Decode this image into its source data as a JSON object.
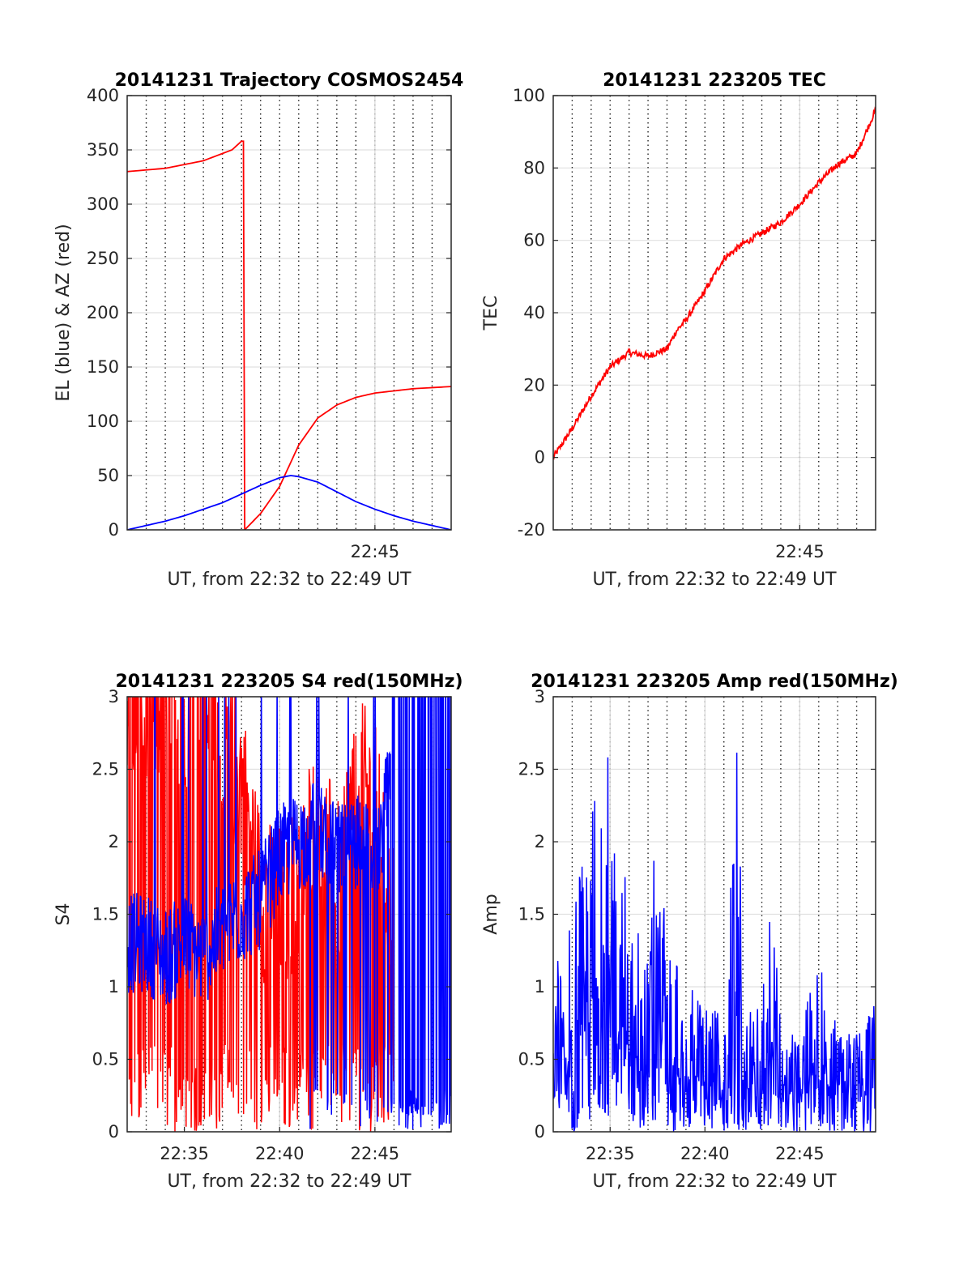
{
  "chart_data": [
    {
      "type": "line",
      "title": "20141231 Trajectory COSMOS2454",
      "xlabel": "UT, from 22:32 to 22:49 UT",
      "ylabel": "EL (blue) & AZ (red)",
      "xlim": [
        "22:32",
        "22:49"
      ],
      "ylim": [
        0,
        400
      ],
      "yticks": [
        0,
        50,
        100,
        150,
        200,
        250,
        300,
        350,
        400
      ],
      "xtick_labels": [
        {
          "x": "22:45",
          "label": "22:45"
        }
      ],
      "grid": true,
      "series": [
        {
          "color": "#ff0000",
          "x": [
            "22:32:00",
            "22:34:00",
            "22:36:00",
            "22:37:30",
            "22:38:00",
            "22:38:06",
            "22:38:10",
            "22:39:00",
            "22:40:00",
            "22:41:00",
            "22:42:00",
            "22:43:00",
            "22:44:00",
            "22:45:00",
            "22:46:00",
            "22:47:00",
            "22:48:00",
            "22:49:00"
          ],
          "y": [
            330,
            333,
            340,
            350,
            358,
            358,
            0,
            15,
            40,
            78,
            103,
            115,
            122,
            126,
            128,
            130,
            131,
            132
          ]
        },
        {
          "color": "#0000ff",
          "x": [
            "22:32:00",
            "22:33:00",
            "22:34:00",
            "22:35:00",
            "22:36:00",
            "22:37:00",
            "22:38:00",
            "22:39:00",
            "22:40:00",
            "22:40:35",
            "22:41:00",
            "22:42:00",
            "22:43:00",
            "22:44:00",
            "22:45:00",
            "22:46:00",
            "22:47:00",
            "22:48:00",
            "22:49:00"
          ],
          "y": [
            0,
            4,
            8,
            13,
            19,
            25,
            33,
            41,
            48,
            50,
            49,
            44,
            35,
            26,
            19,
            13,
            8,
            4,
            0
          ]
        }
      ]
    },
    {
      "type": "line",
      "title": "20141231 223205 TEC",
      "xlabel": "UT, from 22:32 to 22:49 UT",
      "ylabel": "TEC",
      "xlim": [
        "22:32",
        "22:49"
      ],
      "ylim": [
        -20,
        100
      ],
      "yticks": [
        -20,
        0,
        20,
        40,
        60,
        80,
        100
      ],
      "xtick_labels": [
        {
          "x": "22:45",
          "label": "22:45"
        }
      ],
      "grid": true,
      "series": [
        {
          "color": "#ff0000",
          "x": [
            "22:32:00",
            "22:33:00",
            "22:34:00",
            "22:35:00",
            "22:36:00",
            "22:37:00",
            "22:38:00",
            "22:38:30",
            "22:39:00",
            "22:40:00",
            "22:41:00",
            "22:42:00",
            "22:43:00",
            "22:44:00",
            "22:45:00",
            "22:46:00",
            "22:47:00",
            "22:48:00",
            "22:49:00"
          ],
          "y": [
            0,
            8,
            17,
            25,
            29,
            28,
            30,
            35,
            38,
            46,
            55,
            59,
            62,
            65,
            70,
            76,
            81,
            84,
            96
          ]
        }
      ]
    },
    {
      "type": "line",
      "title": "20141231 223205 S4 red(150MHz)",
      "xlabel": "UT, from 22:32 to 22:49 UT",
      "ylabel": "S4",
      "xlim": [
        "22:32",
        "22:49"
      ],
      "ylim": [
        0,
        3
      ],
      "yticks": [
        0,
        0.5,
        1,
        1.5,
        2,
        2.5,
        3
      ],
      "xtick_labels": [
        {
          "x": "22:35",
          "label": "22:35"
        },
        {
          "x": "22:40",
          "label": "22:40"
        },
        {
          "x": "22:45",
          "label": "22:45"
        }
      ],
      "grid": true,
      "series": [
        {
          "color": "#ff0000",
          "x": [
            "22:32:00",
            "22:33:00",
            "22:34:00",
            "22:35:00",
            "22:36:00",
            "22:37:00",
            "22:38:00",
            "22:39:00",
            "22:40:00",
            "22:41:00",
            "22:42:00",
            "22:43:00",
            "22:44:00",
            "22:45:00",
            "22:46:00"
          ],
          "y": [
            2.8,
            2.6,
            2.8,
            2.7,
            2.9,
            2.4,
            2.2,
            1.4,
            1.3,
            1.5,
            2.0,
            1.4,
            2.2,
            2.0,
            1.2
          ]
        },
        {
          "color": "#0000ff",
          "x": [
            "22:32:00",
            "22:33:00",
            "22:34:00",
            "22:35:00",
            "22:36:00",
            "22:37:00",
            "22:38:00",
            "22:39:00",
            "22:40:00",
            "22:41:00",
            "22:42:00",
            "22:43:00",
            "22:44:00",
            "22:45:00",
            "22:46:00",
            "22:47:00",
            "22:48:00",
            "22:49:00"
          ],
          "y": [
            1.3,
            1.3,
            1.2,
            1.3,
            1.2,
            1.4,
            1.5,
            1.6,
            1.9,
            2.0,
            2.1,
            1.9,
            2.0,
            1.9,
            2.5,
            2.8,
            2.9,
            2.8
          ]
        }
      ]
    },
    {
      "type": "line",
      "title": "20141231 223205 Amp red(150MHz)",
      "xlabel": "UT, from 22:32 to 22:49 UT",
      "ylabel": "Amp",
      "xlim": [
        "22:32",
        "22:49"
      ],
      "ylim": [
        0,
        3
      ],
      "yticks": [
        0,
        0.5,
        1,
        1.5,
        2,
        2.5,
        3
      ],
      "xtick_labels": [
        {
          "x": "22:35",
          "label": "22:35"
        },
        {
          "x": "22:40",
          "label": "22:40"
        },
        {
          "x": "22:45",
          "label": "22:45"
        }
      ],
      "grid": true,
      "series": [
        {
          "color": "#0000ff",
          "x": [
            "22:32:00",
            "22:33:00",
            "22:34:00",
            "22:35:00",
            "22:36:00",
            "22:37:00",
            "22:37:30",
            "22:38:00",
            "22:39:00",
            "22:40:00",
            "22:41:00",
            "22:41:45",
            "22:42:00",
            "22:43:00",
            "22:43:20",
            "22:44:00",
            "22:45:00",
            "22:45:30",
            "22:46:00",
            "22:47:00",
            "22:48:00",
            "22:49:00"
          ],
          "y": [
            1.1,
            1.5,
            2.5,
            2.7,
            1.6,
            1.2,
            2.5,
            1.2,
            1.1,
            0.9,
            0.8,
            2.9,
            0.8,
            0.9,
            1.9,
            0.8,
            0.6,
            1.3,
            1.2,
            0.7,
            0.7,
            0.9
          ]
        }
      ]
    }
  ]
}
